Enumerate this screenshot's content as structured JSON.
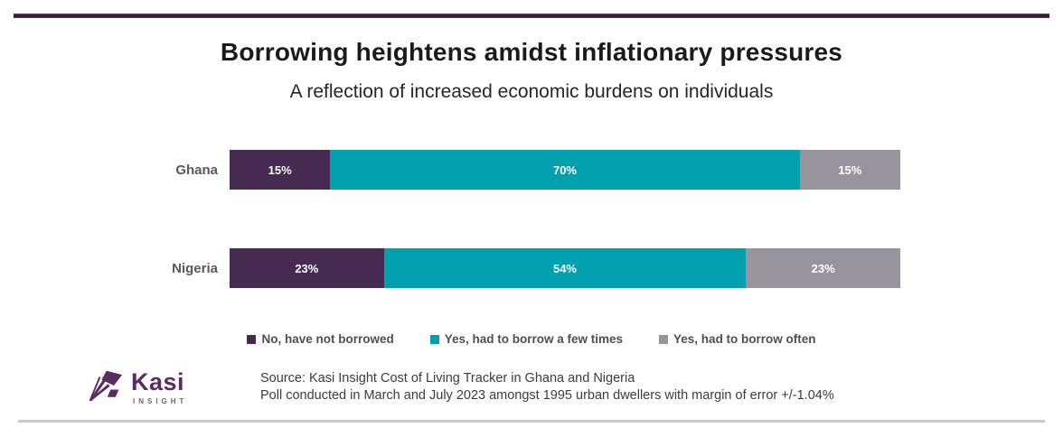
{
  "page": {
    "title": "Borrowing heightens amidst inflationary pressures",
    "subtitle": "A reflection of increased economic burdens on individuals"
  },
  "chart_data": {
    "type": "bar",
    "orientation": "horizontal",
    "stacked": true,
    "title": "Borrowing heightens amidst inflationary pressures",
    "subtitle": "A reflection of increased economic burdens on individuals",
    "categories": [
      "Ghana",
      "Nigeria"
    ],
    "series": [
      {
        "name": "No, have not borrowed",
        "color": "#472a52",
        "values": [
          15,
          23
        ]
      },
      {
        "name": "Yes, had to borrow a few times",
        "color": "#00a0af",
        "values": [
          70,
          54
        ]
      },
      {
        "name": "Yes, had to borrow often",
        "color": "#98949d",
        "values": [
          15,
          23
        ]
      }
    ],
    "value_suffix": "%",
    "xlim": [
      0,
      100
    ],
    "grid": false,
    "legend_position": "bottom"
  },
  "branding": {
    "logo_text": "Kasi",
    "logo_subtext": "INSIGHT",
    "logo_color": "#5b2c5f"
  },
  "footer": {
    "source_line1": "Source: Kasi Insight Cost of Living Tracker in Ghana and Nigeria",
    "source_line2": "Poll conducted  in March and July 2023 amongst 1995 urban dwellers with margin of error +/-1.04%"
  },
  "colors": {
    "top_rule": "#4b2148",
    "bottom_rule": "#cacaca",
    "category_label": "#58585a"
  }
}
